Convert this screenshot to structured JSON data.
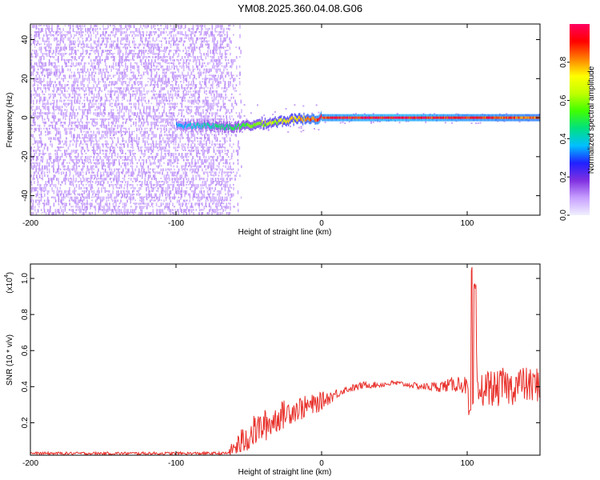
{
  "page": {
    "title": "YM08.2025.360.04.08.G06"
  },
  "chart_data": [
    {
      "type": "heatmap",
      "title": "YM08.2025.360.04.08.G06",
      "xlabel": "Height of straight line (km)",
      "ylabel": "Frequency (Hz)",
      "xlim": [
        -200,
        150
      ],
      "ylim": [
        -50,
        48
      ],
      "x_ticks": [
        -200,
        -100,
        0,
        100
      ],
      "x_tick_labels": [
        "-200",
        "-100",
        "0",
        "100"
      ],
      "y_ticks": [
        -40,
        -20,
        0,
        20,
        40
      ],
      "y_tick_labels": [
        "-40",
        "-20",
        "0",
        "20",
        "40"
      ],
      "grid": false,
      "colorbar": {
        "label": "Normalized spectral amplitude",
        "range": [
          0,
          1
        ],
        "ticks": [
          0.0,
          0.2,
          0.4,
          0.6,
          0.8
        ],
        "tick_labels": [
          "0.0",
          "0.2",
          "0.4",
          "0.6",
          "0.8"
        ],
        "colors": [
          "#f0f0ff",
          "#c8a0ff",
          "#8030e0",
          "#2020ff",
          "#00c0ff",
          "#00e080",
          "#40ff00",
          "#c0ff00",
          "#ffff00",
          "#ff8000",
          "#ff0000",
          "#ff0060"
        ]
      },
      "description_points": {
        "noise_region_x": [
          -200,
          -55
        ],
        "noise_amplitude_range": [
          0.05,
          0.2
        ],
        "main_line_frequency_hz": 0,
        "main_line": [
          {
            "x": -100,
            "freq": -4,
            "amp": 0.35
          },
          {
            "x": -80,
            "freq": -4,
            "amp": 0.45
          },
          {
            "x": -60,
            "freq": -5,
            "amp": 0.5
          },
          {
            "x": -40,
            "freq": -3,
            "amp": 0.65
          },
          {
            "x": -20,
            "freq": -1,
            "amp": 0.75
          },
          {
            "x": 0,
            "freq": 0,
            "amp": 0.95
          },
          {
            "x": 50,
            "freq": 0,
            "amp": 1.0
          },
          {
            "x": 100,
            "freq": 0,
            "amp": 0.95
          },
          {
            "x": 150,
            "freq": 0,
            "amp": 0.9
          }
        ]
      }
    },
    {
      "type": "line",
      "xlabel": "Height of straight line (km)",
      "ylabel": "SNR (10 * v/v)",
      "y_multiplier_label": "(x10",
      "y_multiplier_exponent": "4",
      "y_multiplier_close": ")",
      "xlim": [
        -200,
        150
      ],
      "ylim": [
        0.02,
        1.08
      ],
      "x_ticks": [
        -200,
        -100,
        0,
        100
      ],
      "x_tick_labels": [
        "-200",
        "-100",
        "0",
        "100"
      ],
      "y_ticks": [
        0.2,
        0.4,
        0.6,
        0.8,
        1.0
      ],
      "y_tick_labels": [
        "0.2",
        "0.4",
        "0.6",
        "0.8",
        "1.0"
      ],
      "grid": false,
      "series": [
        {
          "color": "#e8302a",
          "x": [
            -200,
            -180,
            -160,
            -140,
            -120,
            -100,
            -80,
            -65,
            -60,
            -55,
            -50,
            -45,
            -40,
            -35,
            -30,
            -25,
            -20,
            -15,
            -10,
            -5,
            0,
            5,
            10,
            15,
            20,
            25,
            30,
            40,
            50,
            60,
            70,
            80,
            90,
            95,
            100,
            102,
            103,
            104,
            105,
            107,
            110,
            115,
            120,
            125,
            130,
            135,
            140,
            145,
            150
          ],
          "y": [
            0.03,
            0.03,
            0.03,
            0.03,
            0.03,
            0.03,
            0.03,
            0.03,
            0.06,
            0.09,
            0.13,
            0.16,
            0.18,
            0.2,
            0.23,
            0.25,
            0.27,
            0.28,
            0.29,
            0.3,
            0.32,
            0.34,
            0.36,
            0.38,
            0.39,
            0.4,
            0.41,
            0.41,
            0.42,
            0.41,
            0.4,
            0.4,
            0.41,
            0.42,
            0.4,
            0.25,
            1.05,
            0.3,
            0.95,
            0.35,
            0.38,
            0.4,
            0.38,
            0.41,
            0.39,
            0.42,
            0.41,
            0.4,
            0.42
          ],
          "noise_amplitude": [
            0.008,
            0.008,
            0.008,
            0.008,
            0.008,
            0.008,
            0.008,
            0.008,
            0.05,
            0.08,
            0.09,
            0.09,
            0.09,
            0.09,
            0.08,
            0.08,
            0.07,
            0.07,
            0.06,
            0.06,
            0.05,
            0.04,
            0.03,
            0.02,
            0.02,
            0.02,
            0.02,
            0.015,
            0.015,
            0.015,
            0.02,
            0.03,
            0.04,
            0.05,
            0.05,
            0.0,
            0.0,
            0.0,
            0.0,
            0.1,
            0.1,
            0.1,
            0.1,
            0.1,
            0.1,
            0.1,
            0.1,
            0.1,
            0.1
          ]
        }
      ]
    }
  ]
}
